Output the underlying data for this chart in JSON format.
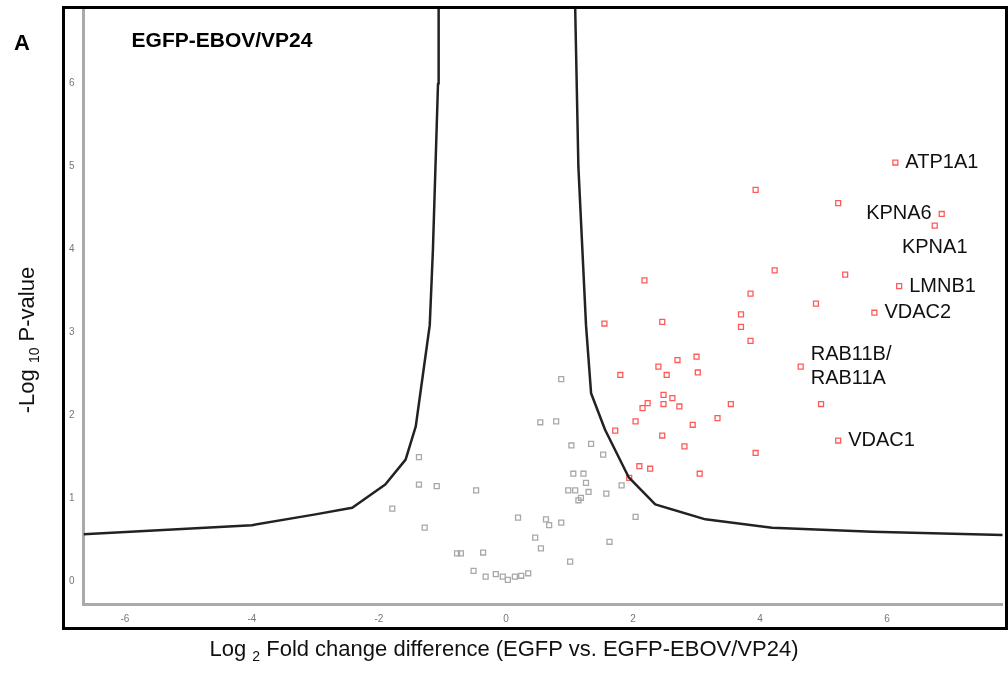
{
  "chart_data": {
    "type": "scatter",
    "title": "EGFP-EBOV/VP24",
    "xlabel": "Log $_{2}$ Fold change difference (EGFP vs. EGFP-EBOV/VP24)",
    "ylabel": "-Log $_{10}$ P-value",
    "xlim": [
      -6.65,
      7.82
    ],
    "xticks": [
      -6,
      -4,
      -2,
      0,
      2,
      4,
      6
    ],
    "ylim": [
      -0.27,
      6.9
    ],
    "yticks": [
      0,
      1,
      2,
      3,
      4,
      5,
      6
    ],
    "grid": false,
    "legend": false,
    "marker": "square",
    "annotations": [
      "A",
      {
        "text": "ATP1A1",
        "x": 6.13,
        "y": 5.05
      },
      {
        "text": "KPNA6",
        "x": 6.86,
        "y": 4.43
      },
      {
        "text": "KPNA1",
        "x": 6.75,
        "y": 4.29
      },
      {
        "text": "LMNB1",
        "x": 6.19,
        "y": 3.56
      },
      {
        "text": "VDAC2",
        "x": 5.8,
        "y": 3.24
      },
      {
        "text": "RAB11B/\nRAB11A",
        "x": 4.64,
        "y": 2.59
      },
      {
        "text": "VDAC1",
        "x": 5.23,
        "y": 1.7
      }
    ],
    "series": [
      {
        "type": "line",
        "color": "#222222",
        "marker": "none",
        "x": [
          -6.65,
          -4,
          -3,
          -2.42,
          -1.9,
          -1.58,
          -1.42,
          -1.31,
          -1.2,
          -1.15,
          -1.11,
          -1.07,
          -1.06
        ],
        "values": [
          0.57,
          0.68,
          0.81,
          0.89,
          1.17,
          1.47,
          1.87,
          2.48,
          3.09,
          4,
          5,
          6,
          6.9
        ]
      },
      {
        "type": "line",
        "color": "#222222",
        "marker": "none",
        "x": [
          1.09,
          1.14,
          1.26,
          1.34,
          1.56,
          1.93,
          2.35,
          3.14,
          4.19,
          5.77,
          7.82
        ],
        "values": [
          6.9,
          5,
          3.09,
          2.27,
          1.83,
          1.26,
          0.93,
          0.75,
          0.65,
          0.6,
          0.56
        ]
      },
      {
        "type": "scatter",
        "color": "#a8a8a8",
        "x": [
          -1.37,
          -1.37,
          -1.09,
          -0.47,
          -1.79,
          -1.28,
          -0.77,
          -0.71,
          -0.36,
          -0.51,
          -0.32,
          -0.16,
          -0.05,
          0.03,
          0.14,
          0.24,
          0.35,
          0.19,
          0.46,
          0.55,
          0.54,
          0.63,
          0.68,
          0.87,
          0.79,
          1.03,
          1.34,
          1.53,
          1.06,
          1.22,
          1.26,
          0.98,
          1.09,
          1.3,
          1.58,
          1.82,
          1.14,
          1.18,
          2.04,
          0.87,
          1.63,
          1.01
        ],
        "values": [
          1.5,
          1.17,
          1.15,
          1.1,
          0.88,
          0.65,
          0.34,
          0.34,
          0.35,
          0.13,
          0.06,
          0.09,
          0.06,
          0.02,
          0.06,
          0.07,
          0.1,
          0.77,
          0.53,
          0.4,
          1.92,
          0.75,
          0.68,
          2.44,
          1.93,
          1.64,
          1.66,
          1.53,
          1.3,
          1.3,
          1.19,
          1.1,
          1.1,
          1.08,
          1.06,
          1.16,
          0.98,
          1.01,
          0.78,
          0.71,
          0.48,
          0.24
        ]
      },
      {
        "type": "scatter",
        "color": "#ff5a5a",
        "x": [
          6.13,
          3.93,
          5.23,
          6.86,
          6.75,
          4.23,
          5.34,
          2.18,
          6.19,
          3.85,
          4.88,
          5.8,
          1.55,
          2.46,
          3.7,
          3.7,
          3.85,
          3.0,
          2.7,
          2.4,
          4.64,
          1.8,
          2.53,
          3.02,
          2.48,
          2.62,
          2.48,
          2.23,
          2.15,
          2.73,
          3.54,
          4.96,
          3.33,
          2.04,
          2.94,
          1.72,
          2.46,
          5.23,
          2.81,
          3.93,
          2.1,
          2.27,
          3.05,
          1.94
        ],
        "values": [
          5.05,
          4.72,
          4.56,
          4.43,
          4.29,
          3.75,
          3.7,
          3.63,
          3.56,
          3.47,
          3.35,
          3.24,
          3.11,
          3.13,
          3.22,
          3.07,
          2.9,
          2.71,
          2.67,
          2.59,
          2.59,
          2.49,
          2.49,
          2.52,
          2.25,
          2.21,
          2.14,
          2.15,
          2.09,
          2.11,
          2.14,
          2.14,
          1.97,
          1.93,
          1.89,
          1.82,
          1.76,
          1.7,
          1.63,
          1.55,
          1.39,
          1.36,
          1.3,
          1.25
        ]
      }
    ]
  }
}
